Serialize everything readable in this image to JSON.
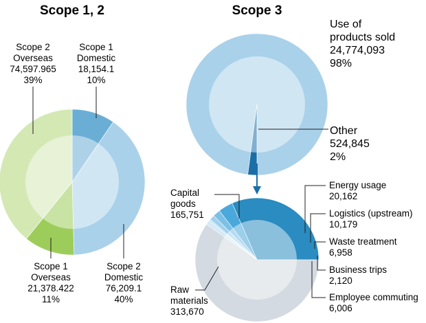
{
  "chart_data": [
    {
      "type": "pie",
      "title": "Scope 1, 2",
      "slices": [
        {
          "name": "Scope 1 Domestic",
          "value": 18154.1,
          "percent": "10%",
          "color": "#6aaed6"
        },
        {
          "name": "Scope 2 Domestic",
          "value": 76209.1,
          "percent": "40%",
          "color": "#a9d1ea"
        },
        {
          "name": "Scope 1 Overseas",
          "value": 21378.422,
          "percent": "11%",
          "color": "#9ccd5a"
        },
        {
          "name": "Scope 2 Overseas",
          "value": 74597.965,
          "percent": "39%",
          "color": "#d4e8b4"
        }
      ],
      "labels": {
        "s1d": [
          "Scope 1",
          "Domestic",
          "18,154.1",
          "10%"
        ],
        "s2d": [
          "Scope 2",
          "Domestic",
          "76,209.1",
          "40%"
        ],
        "s1o": [
          "Scope 1",
          "Overseas",
          "21,378.422",
          "11%"
        ],
        "s2o": [
          "Scope 2",
          "Overseas",
          "74,597.965",
          "39%"
        ]
      }
    },
    {
      "type": "pie",
      "title": "Scope 3",
      "slices": [
        {
          "name": "Use of products sold",
          "value": 24774093,
          "percent": "98%",
          "color": "#a9d1ea"
        },
        {
          "name": "Other",
          "value": 524845,
          "percent": "2%",
          "color": "#1b6ea8"
        }
      ],
      "labels": {
        "use": [
          "Use of",
          "products sold",
          "24,774,093",
          "98%"
        ],
        "other": [
          "Other",
          "524,845",
          "2%"
        ]
      }
    },
    {
      "type": "pie",
      "title": "",
      "slices": [
        {
          "name": "Capital goods",
          "value": 165751,
          "color": "#2a8cc0"
        },
        {
          "name": "Energy usage",
          "value": 20162,
          "color": "#4aa8dc"
        },
        {
          "name": "Logistics (upstream)",
          "value": 10179,
          "color": "#7cc0e6"
        },
        {
          "name": "Waste treatment",
          "value": 6958,
          "color": "#9fd0ee"
        },
        {
          "name": "Business trips",
          "value": 2120,
          "color": "#bcdff2"
        },
        {
          "name": "Employee commuting",
          "value": 6006,
          "color": "#d3e9f6"
        },
        {
          "name": "Raw materials",
          "value": 313670,
          "color": "#d3dae1"
        }
      ],
      "labels": {
        "capital": [
          "Capital",
          "goods",
          "165,751"
        ],
        "energy": [
          "Energy usage",
          "20,162"
        ],
        "logistics": [
          "Logistics (upstream)",
          "10,179"
        ],
        "waste": [
          "Waste treatment",
          "6,958"
        ],
        "trips": [
          "Business trips",
          "2,120"
        ],
        "commute": [
          "Employee commuting",
          "6,006"
        ],
        "raw": [
          "Raw",
          "materials",
          "313,670"
        ]
      }
    }
  ]
}
